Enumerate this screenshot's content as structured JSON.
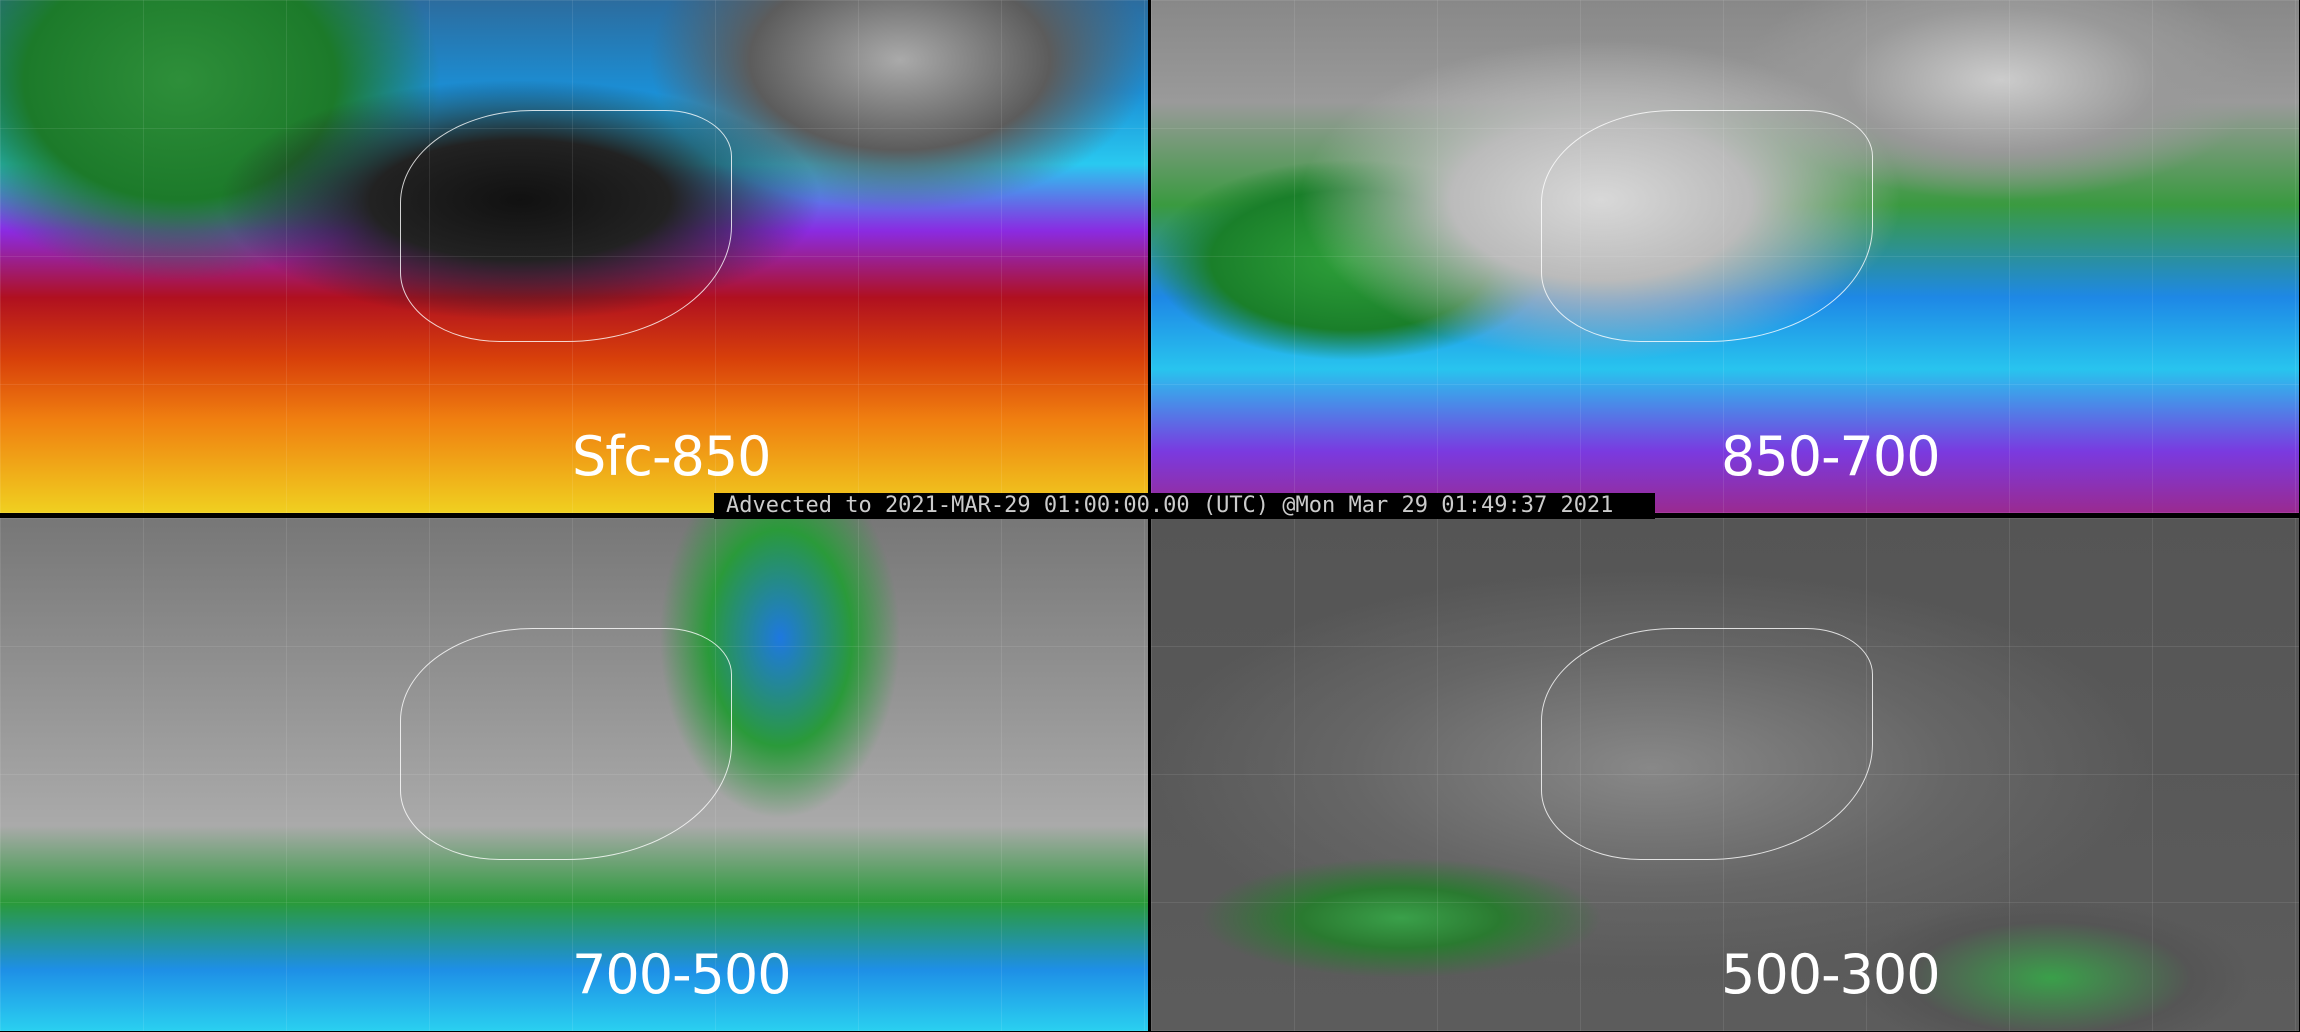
{
  "panels": [
    {
      "label": "Sfc-850",
      "colormap": [
        "#f0d020",
        "#f08010",
        "#b01020",
        "#8a2be2",
        "#29c9f0",
        "#1b8fd6",
        "#1c7a2a",
        "#222222"
      ]
    },
    {
      "label": "850-700",
      "colormap": [
        "#9a2a90",
        "#7a3ae0",
        "#28c4ee",
        "#1e88e6",
        "#3a9a40",
        "#bbbbbb"
      ]
    },
    {
      "label": "700-500",
      "colormap": [
        "#2ad0f0",
        "#1e8fe6",
        "#2a9a3a",
        "#aaaaaa"
      ]
    },
    {
      "label": "500-300",
      "colormap": [
        "#3aa04a",
        "#888888",
        "#555555"
      ]
    }
  ],
  "timestamp": "Advected to 2021-MAR-29 01:00:00.00 (UTC) @Mon Mar 29 01:49:37 2021"
}
